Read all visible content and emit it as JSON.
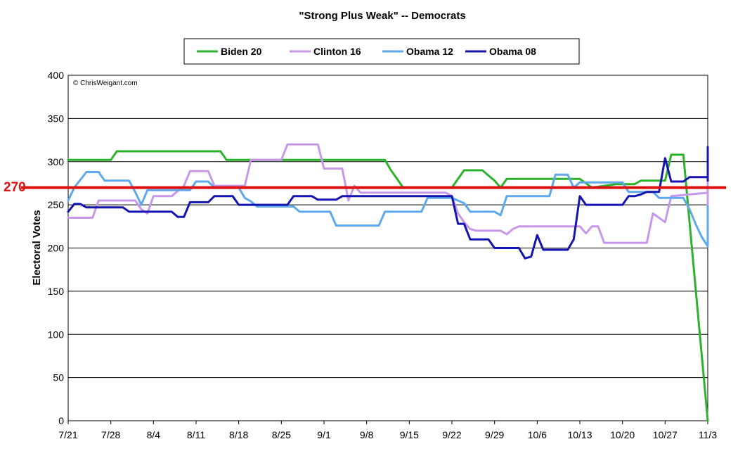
{
  "chart_data": {
    "type": "line",
    "title": "\"Strong Plus Weak\" -- Democrats",
    "ylabel": "Electoral Votes",
    "xlabel": "",
    "ylim": [
      0,
      400
    ],
    "yticks": [
      0,
      50,
      100,
      150,
      200,
      250,
      300,
      350,
      400
    ],
    "x_tick_labels": [
      "7/21",
      "7/28",
      "8/4",
      "8/11",
      "8/18",
      "8/25",
      "9/1",
      "9/8",
      "9/15",
      "9/22",
      "9/29",
      "10/6",
      "10/13",
      "10/20",
      "10/27",
      "11/3"
    ],
    "grid": true,
    "legend_position": "top",
    "copyright": "© ChrisWeigant.com",
    "reference_line": {
      "value": 270,
      "label": "270",
      "color": "#dd1111"
    },
    "series": [
      {
        "name": "Biden 20",
        "color": "#2db22d",
        "points": [
          [
            0,
            302
          ],
          [
            7,
            302
          ],
          [
            8,
            312
          ],
          [
            25,
            312
          ],
          [
            26,
            302
          ],
          [
            52,
            302
          ],
          [
            53,
            290
          ],
          [
            55,
            270
          ],
          [
            63,
            270
          ],
          [
            65,
            290
          ],
          [
            68,
            290
          ],
          [
            70,
            278
          ],
          [
            71,
            270
          ],
          [
            72,
            280
          ],
          [
            84,
            280
          ],
          [
            86,
            270
          ],
          [
            90,
            274
          ],
          [
            93,
            274
          ],
          [
            94,
            278
          ],
          [
            98,
            278
          ],
          [
            99,
            308
          ],
          [
            101,
            308
          ],
          [
            106,
            0
          ],
          [
            105,
            0
          ],
          [
            140,
            0
          ]
        ]
      },
      {
        "name": "Clinton 16",
        "color": "#c898e8",
        "points": [
          [
            0,
            235
          ],
          [
            4,
            235
          ],
          [
            5,
            255
          ],
          [
            11,
            255
          ],
          [
            12,
            245
          ],
          [
            13,
            240
          ],
          [
            14,
            260
          ],
          [
            17,
            260
          ],
          [
            19,
            272
          ],
          [
            20,
            289
          ],
          [
            23,
            289
          ],
          [
            24,
            272
          ],
          [
            29,
            272
          ],
          [
            30,
            302
          ],
          [
            35,
            302
          ],
          [
            36,
            320
          ],
          [
            41,
            320
          ],
          [
            42,
            292
          ],
          [
            45,
            292
          ],
          [
            46,
            255
          ],
          [
            47,
            272
          ],
          [
            48,
            264
          ],
          [
            62,
            264
          ],
          [
            63,
            260
          ],
          [
            64,
            240
          ],
          [
            65,
            230
          ],
          [
            66,
            222
          ],
          [
            67,
            220
          ],
          [
            71,
            220
          ],
          [
            72,
            216
          ],
          [
            73,
            222
          ],
          [
            74,
            225
          ],
          [
            84,
            225
          ],
          [
            85,
            217
          ],
          [
            86,
            225
          ],
          [
            87,
            225
          ],
          [
            88,
            206
          ],
          [
            95,
            206
          ],
          [
            96,
            240
          ],
          [
            97,
            235
          ],
          [
            98,
            230
          ],
          [
            99,
            260
          ],
          [
            106,
            264
          ],
          [
            107,
            255
          ],
          [
            108,
            265
          ],
          [
            110,
            265
          ],
          [
            111,
            272
          ],
          [
            112,
            256
          ],
          [
            115,
            256
          ],
          [
            116,
            280
          ],
          [
            118,
            298
          ],
          [
            119,
            272
          ],
          [
            130,
            272
          ],
          [
            131,
            280
          ],
          [
            133,
            280
          ],
          [
            134,
            272
          ],
          [
            142,
            272
          ],
          [
            143,
            264
          ],
          [
            148,
            264
          ],
          [
            149,
            258
          ],
          [
            150,
            247
          ],
          [
            152,
            247
          ],
          [
            153,
            239
          ]
        ]
      },
      {
        "name": "Obama 12",
        "color": "#5ea8ec",
        "points": [
          [
            0,
            255
          ],
          [
            1,
            270
          ],
          [
            3,
            288
          ],
          [
            5,
            288
          ],
          [
            6,
            278
          ],
          [
            9,
            278
          ],
          [
            10,
            278
          ],
          [
            11,
            265
          ],
          [
            12,
            250
          ],
          [
            13,
            267
          ],
          [
            20,
            267
          ],
          [
            21,
            277
          ],
          [
            23,
            277
          ],
          [
            24,
            270
          ],
          [
            28,
            270
          ],
          [
            29,
            258
          ],
          [
            30,
            254
          ],
          [
            31,
            248
          ],
          [
            37,
            248
          ],
          [
            38,
            242
          ],
          [
            43,
            242
          ],
          [
            44,
            226
          ],
          [
            51,
            226
          ],
          [
            52,
            242
          ],
          [
            58,
            242
          ],
          [
            59,
            258
          ],
          [
            63,
            258
          ],
          [
            65,
            252
          ],
          [
            66,
            242
          ],
          [
            70,
            242
          ],
          [
            71,
            238
          ],
          [
            72,
            260
          ],
          [
            79,
            260
          ],
          [
            80,
            285
          ],
          [
            82,
            285
          ],
          [
            83,
            270
          ],
          [
            84,
            276
          ],
          [
            91,
            276
          ],
          [
            92,
            265
          ],
          [
            96,
            265
          ],
          [
            97,
            258
          ],
          [
            101,
            258
          ],
          [
            102,
            245
          ],
          [
            103,
            228
          ],
          [
            104,
            213
          ],
          [
            105,
            202
          ],
          [
            106,
            222
          ],
          [
            107,
            238
          ],
          [
            122,
            238
          ],
          [
            123,
            240
          ],
          [
            125,
            238
          ],
          [
            132,
            238
          ],
          [
            133,
            248
          ],
          [
            134,
            240
          ],
          [
            136,
            240
          ],
          [
            137,
            228
          ],
          [
            140,
            228
          ],
          [
            141,
            248
          ],
          [
            142,
            238
          ],
          [
            143,
            238
          ],
          [
            145,
            238
          ],
          [
            146,
            230
          ],
          [
            147,
            230
          ],
          [
            148,
            218
          ],
          [
            150,
            218
          ]
        ]
      },
      {
        "name": "Obama 08",
        "color": "#1414b0",
        "points": [
          [
            0,
            242
          ],
          [
            1,
            251
          ],
          [
            2,
            251
          ],
          [
            3,
            247
          ],
          [
            9,
            247
          ],
          [
            10,
            242
          ],
          [
            17,
            242
          ],
          [
            18,
            236
          ],
          [
            19,
            236
          ],
          [
            20,
            253
          ],
          [
            23,
            253
          ],
          [
            24,
            260
          ],
          [
            27,
            260
          ],
          [
            28,
            250
          ],
          [
            36,
            250
          ],
          [
            37,
            260
          ],
          [
            40,
            260
          ],
          [
            41,
            256
          ],
          [
            44,
            256
          ],
          [
            45,
            260
          ],
          [
            63,
            260
          ],
          [
            64,
            228
          ],
          [
            65,
            228
          ],
          [
            66,
            210
          ],
          [
            69,
            210
          ],
          [
            70,
            200
          ],
          [
            74,
            200
          ],
          [
            75,
            188
          ],
          [
            76,
            190
          ],
          [
            77,
            215
          ],
          [
            78,
            198
          ],
          [
            82,
            198
          ],
          [
            83,
            210
          ],
          [
            84,
            260
          ],
          [
            85,
            250
          ],
          [
            91,
            250
          ],
          [
            92,
            260
          ],
          [
            93,
            260
          ],
          [
            94,
            262
          ],
          [
            95,
            265
          ],
          [
            97,
            265
          ],
          [
            98,
            304
          ],
          [
            99,
            277
          ],
          [
            101,
            277
          ],
          [
            102,
            282
          ],
          [
            106,
            282
          ],
          [
            107,
            280
          ],
          [
            108,
            289
          ],
          [
            109,
            286
          ],
          [
            117,
            286
          ],
          [
            118,
            317
          ],
          [
            121,
            317
          ],
          [
            122,
            306
          ],
          [
            124,
            306
          ],
          [
            125,
            311
          ],
          [
            131,
            311
          ],
          [
            132,
            278
          ]
        ]
      }
    ]
  }
}
